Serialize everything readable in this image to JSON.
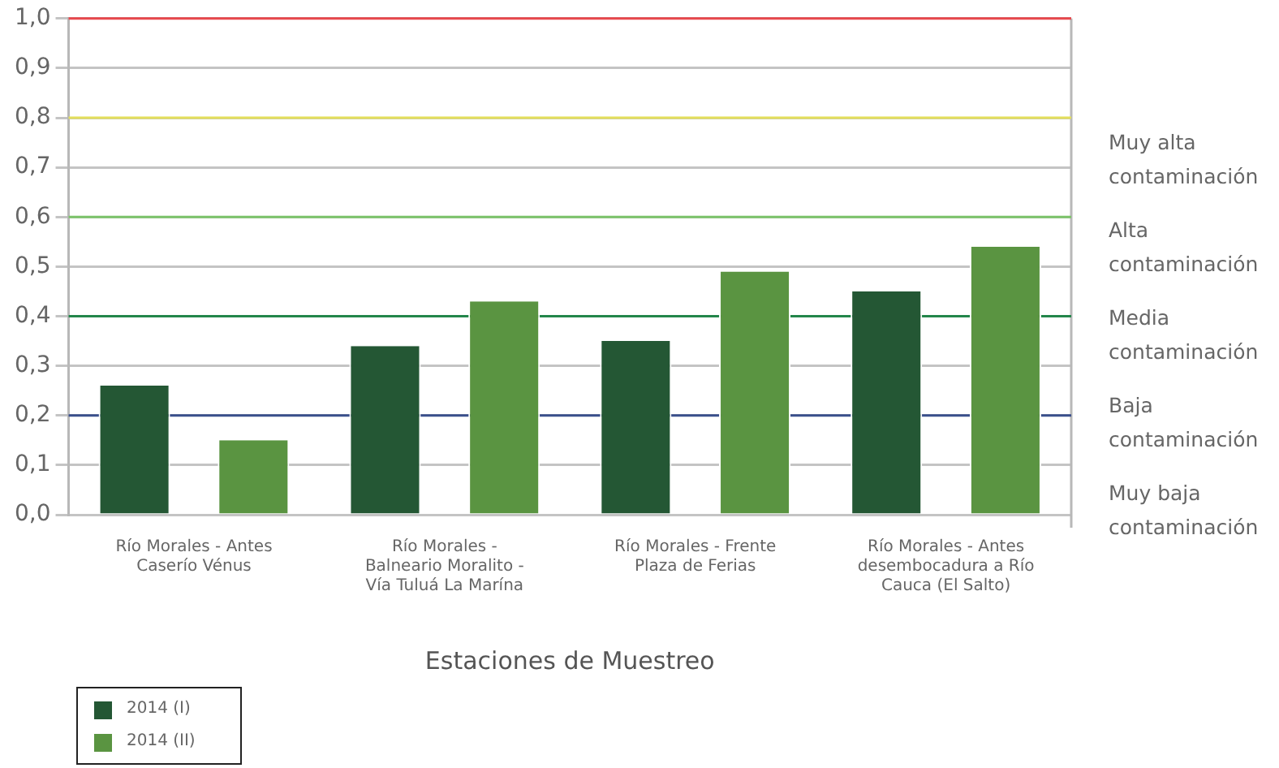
{
  "chart_data": {
    "type": "bar",
    "categories": [
      "Río Morales - Antes Caserío Vénus",
      "Río Morales - Balneario Moralito - Vía Tuluá La Marína",
      "Río Morales - Frente Plaza de Ferias",
      "Río Morales - Antes desembocadura a Río Cauca (El Salto)"
    ],
    "series": [
      {
        "name": "2014 (I)",
        "color": "#245734",
        "values": [
          0.26,
          0.34,
          0.35,
          0.45
        ]
      },
      {
        "name": "2014 (II)",
        "color": "#5a9441",
        "values": [
          0.15,
          0.43,
          0.49,
          0.54
        ]
      }
    ],
    "xlabel": "Estaciones de Muestreo",
    "ylim": [
      0,
      1
    ],
    "yticks": [
      {
        "value": 0,
        "label": "0,0"
      },
      {
        "value": 0.1,
        "label": "0,1"
      },
      {
        "value": 0.2,
        "label": "0,2"
      },
      {
        "value": 0.3,
        "label": "0,3"
      },
      {
        "value": 0.4,
        "label": "0,4"
      },
      {
        "value": 0.5,
        "label": "0,5"
      },
      {
        "value": 0.6,
        "label": "0,6"
      },
      {
        "value": 0.7,
        "label": "0,7"
      },
      {
        "value": 0.8,
        "label": "0,8"
      },
      {
        "value": 0.9,
        "label": "0,9"
      },
      {
        "value": 1,
        "label": "1,0"
      }
    ],
    "ref_lines": [
      {
        "axis": "y",
        "value": 1,
        "color": "#e8474c"
      },
      {
        "axis": "y",
        "value": 0.8,
        "color": "#e3df5c"
      },
      {
        "axis": "y",
        "value": 0.6,
        "color": "#7cc46a"
      },
      {
        "axis": "y",
        "value": 0.4,
        "color": "#23864a"
      },
      {
        "axis": "y",
        "value": 0.2,
        "color": "#3a4f8c"
      }
    ],
    "annotations": [
      "Muy alta contaminación",
      "Alta contaminación",
      "Media contaminación",
      "Baja contaminación",
      "Muy baja contaminación"
    ],
    "grid": "y",
    "legend": "bottom left"
  }
}
